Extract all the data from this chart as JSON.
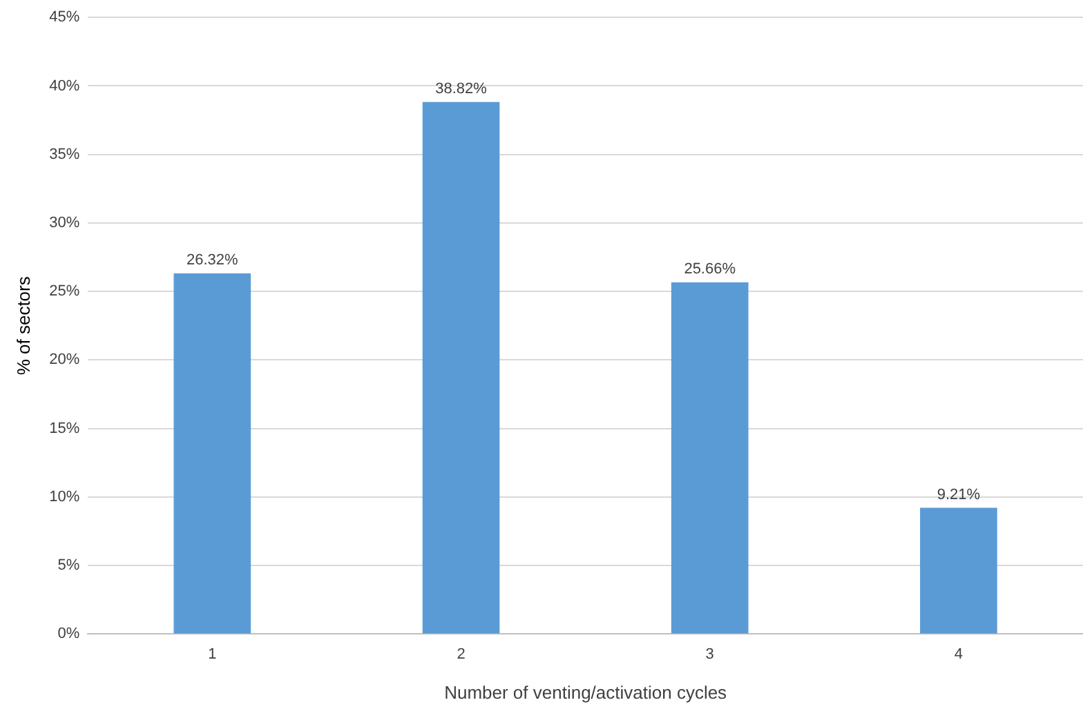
{
  "chart_data": {
    "type": "bar",
    "xlabel": "Number of venting/activation cycles",
    "ylabel": "% of sectors",
    "categories": [
      "1",
      "2",
      "3",
      "4"
    ],
    "values": [
      26.32,
      38.82,
      25.66,
      9.21
    ],
    "value_labels": [
      "26.32%",
      "38.82%",
      "25.66%",
      "9.21%"
    ],
    "color": "#5b9bd5",
    "ylim": [
      0,
      45
    ],
    "yticks": [
      {
        "value": 0,
        "label": "0%"
      },
      {
        "value": 5,
        "label": "5%"
      },
      {
        "value": 10,
        "label": "10%"
      },
      {
        "value": 15,
        "label": "15%"
      },
      {
        "value": 20,
        "label": "20%"
      },
      {
        "value": 25,
        "label": "25%"
      },
      {
        "value": 30,
        "label": "30%"
      },
      {
        "value": 35,
        "label": "35%"
      },
      {
        "value": 40,
        "label": "40%"
      },
      {
        "value": 45,
        "label": "45%"
      }
    ],
    "grid": "y",
    "legend": false
  }
}
